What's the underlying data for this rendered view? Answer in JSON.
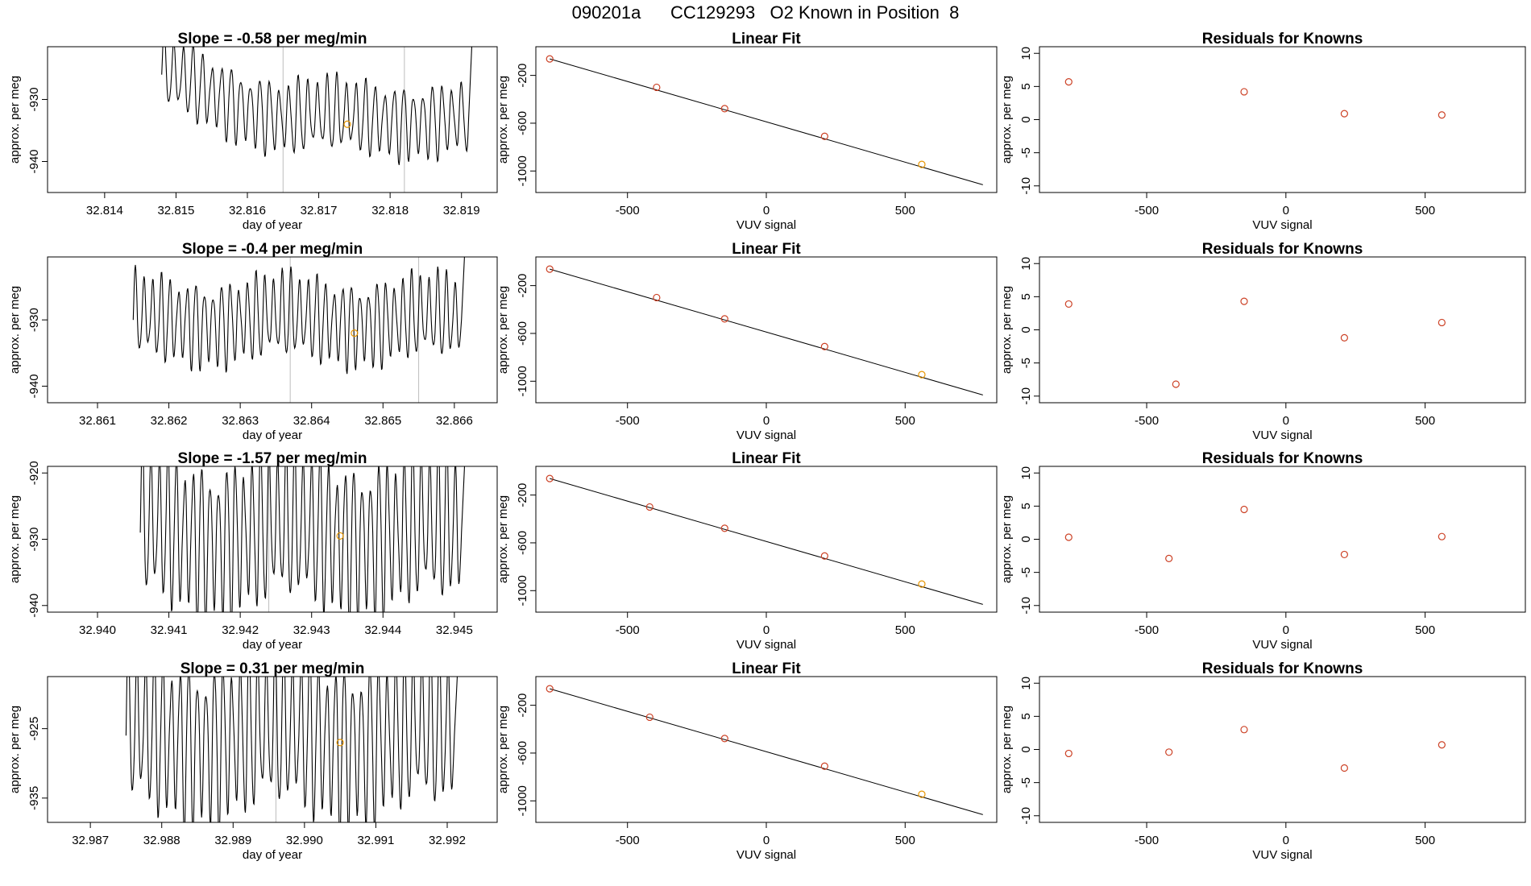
{
  "page_title": "090201a      CC129293   O2 Known in Position  8",
  "colors": {
    "trace": "#000000",
    "fit_line": "#000000",
    "known_point": "#cc4125",
    "highlight_point": "#e69500",
    "marker_line": "#bdbdbd"
  },
  "chart_data": [
    {
      "type": "line",
      "row": 0,
      "title": "Slope =  -0.58  per meg/min",
      "xlabel": "day of year",
      "ylabel": "approx. per meg",
      "xlim": [
        32.8132,
        32.8195
      ],
      "ylim": [
        -945,
        -921.5
      ],
      "xticks": [
        "32.814",
        "32.815",
        "32.816",
        "32.817",
        "32.818",
        "32.819"
      ],
      "yticks": [
        "-930",
        "-940"
      ],
      "trace": {
        "x_start": 32.8148,
        "x_end": 32.8191,
        "baseline": -926,
        "drift": -7,
        "amplitude": 6.5,
        "cycles": 32
      },
      "markers_x": [
        32.8165,
        32.8182
      ],
      "highlight": {
        "x": 32.8174,
        "y": -934
      }
    },
    {
      "type": "scatter",
      "row": 0,
      "title": "Linear Fit",
      "xlabel": "VUV signal",
      "ylabel": "approx. per meg",
      "xlim": [
        -830,
        830
      ],
      "ylim": [
        -1180,
        40
      ],
      "xticks": [
        "-500",
        "0",
        "500"
      ],
      "yticks": [
        "-200",
        "-600",
        "-1000"
      ],
      "points": [
        [
          -780,
          -62
        ],
        [
          -395,
          -300
        ],
        [
          -150,
          -478
        ],
        [
          210,
          -710
        ],
        [
          560,
          -945
        ]
      ],
      "fit": [
        [
          -780,
          -62
        ],
        [
          780,
          -1115
        ]
      ]
    },
    {
      "type": "scatter",
      "row": 0,
      "title": "Residuals for Knowns",
      "xlabel": "VUV signal",
      "ylabel": "approx. per meg",
      "xlim": [
        -885,
        860
      ],
      "ylim": [
        -11,
        11
      ],
      "xticks": [
        "-500",
        "0",
        "500"
      ],
      "yticks": [
        "10",
        "5",
        "0",
        "-5",
        "-10"
      ],
      "points": [
        [
          -780,
          5.7
        ],
        [
          -150,
          4.2
        ],
        [
          210,
          0.9
        ],
        [
          560,
          0.7
        ]
      ]
    },
    {
      "type": "line",
      "row": 1,
      "title": "Slope =  -0.4  per meg/min",
      "xlabel": "day of year",
      "ylabel": "approx. per meg",
      "xlim": [
        32.8603,
        32.8666
      ],
      "ylim": [
        -942.5,
        -920.5
      ],
      "xticks": [
        "32.861",
        "32.862",
        "32.863",
        "32.864",
        "32.865",
        "32.866"
      ],
      "yticks": [
        "-930",
        "-940"
      ],
      "trace": {
        "x_start": 32.8615,
        "x_end": 32.8661,
        "baseline": -930,
        "drift": 0,
        "amplitude": 7,
        "cycles": 38
      },
      "markers_x": [
        32.8637,
        32.8655
      ],
      "highlight": {
        "x": 32.8646,
        "y": -932
      }
    },
    {
      "type": "scatter",
      "row": 1,
      "title": "Linear Fit",
      "xlabel": "VUV signal",
      "ylabel": "approx. per meg",
      "xlim": [
        -830,
        830
      ],
      "ylim": [
        -1180,
        40
      ],
      "xticks": [
        "-500",
        "0",
        "500"
      ],
      "yticks": [
        "-200",
        "-600",
        "-1000"
      ],
      "points": [
        [
          -780,
          -62
        ],
        [
          -395,
          -300
        ],
        [
          -150,
          -478
        ],
        [
          210,
          -710
        ],
        [
          560,
          -945
        ]
      ],
      "fit": [
        [
          -780,
          -62
        ],
        [
          780,
          -1115
        ]
      ]
    },
    {
      "type": "scatter",
      "row": 1,
      "title": "Residuals for Knowns",
      "xlabel": "VUV signal",
      "ylabel": "approx. per meg",
      "xlim": [
        -885,
        860
      ],
      "ylim": [
        -11,
        11
      ],
      "xticks": [
        "-500",
        "0",
        "500"
      ],
      "yticks": [
        "10",
        "5",
        "0",
        "-5",
        "-10"
      ],
      "points": [
        [
          -780,
          3.9
        ],
        [
          -395,
          -8.2
        ],
        [
          -150,
          4.3
        ],
        [
          210,
          -1.2
        ],
        [
          560,
          1.1
        ]
      ]
    },
    {
      "type": "line",
      "row": 2,
      "title": "Slope =  -1.57  per meg/min",
      "xlabel": "day of year",
      "ylabel": "approx. per meg",
      "xlim": [
        32.9393,
        32.9456
      ],
      "ylim": [
        -941,
        -919
      ],
      "xticks": [
        "32.940",
        "32.941",
        "32.942",
        "32.943",
        "32.944",
        "32.945"
      ],
      "yticks": [
        "-920",
        "-930",
        "-940"
      ],
      "trace": {
        "x_start": 32.9406,
        "x_end": 32.9451,
        "baseline": -929,
        "drift": 0,
        "amplitude": 13,
        "cycles": 38
      },
      "markers_x": [
        32.9424
      ],
      "highlight": {
        "x": 32.9434,
        "y": -929.5
      }
    },
    {
      "type": "scatter",
      "row": 2,
      "title": "Linear Fit",
      "xlabel": "VUV signal",
      "ylabel": "approx. per meg",
      "xlim": [
        -830,
        830
      ],
      "ylim": [
        -1180,
        40
      ],
      "xticks": [
        "-500",
        "0",
        "500"
      ],
      "yticks": [
        "-200",
        "-600",
        "-1000"
      ],
      "points": [
        [
          -780,
          -62
        ],
        [
          -420,
          -300
        ],
        [
          -150,
          -478
        ],
        [
          210,
          -710
        ],
        [
          560,
          -945
        ]
      ],
      "fit": [
        [
          -780,
          -62
        ],
        [
          780,
          -1115
        ]
      ]
    },
    {
      "type": "scatter",
      "row": 2,
      "title": "Residuals for Knowns",
      "xlabel": "VUV signal",
      "ylabel": "approx. per meg",
      "xlim": [
        -885,
        860
      ],
      "ylim": [
        -11,
        11
      ],
      "xticks": [
        "-500",
        "0",
        "500"
      ],
      "yticks": [
        "10",
        "5",
        "0",
        "-5",
        "-10"
      ],
      "points": [
        [
          -780,
          0.3
        ],
        [
          -420,
          -2.9
        ],
        [
          -150,
          4.5
        ],
        [
          210,
          -2.3
        ],
        [
          560,
          0.4
        ]
      ]
    },
    {
      "type": "line",
      "row": 3,
      "title": "Slope =  0.31  per meg/min",
      "xlabel": "day of year",
      "ylabel": "approx. per meg",
      "xlim": [
        32.9864,
        32.9927
      ],
      "ylim": [
        -938.5,
        -917.5
      ],
      "xticks": [
        "32.987",
        "32.988",
        "32.989",
        "32.990",
        "32.991",
        "32.992"
      ],
      "yticks": [
        "-925",
        "-935"
      ],
      "trace": {
        "x_start": 32.9875,
        "x_end": 32.9921,
        "baseline": -926,
        "drift": 0,
        "amplitude": 13,
        "cycles": 38
      },
      "markers_x": [
        32.9896
      ],
      "highlight": {
        "x": 32.9905,
        "y": -927
      }
    },
    {
      "type": "scatter",
      "row": 3,
      "title": "Linear Fit",
      "xlabel": "VUV signal",
      "ylabel": "approx. per meg",
      "xlim": [
        -830,
        830
      ],
      "ylim": [
        -1180,
        40
      ],
      "xticks": [
        "-500",
        "0",
        "500"
      ],
      "yticks": [
        "-200",
        "-600",
        "-1000"
      ],
      "points": [
        [
          -780,
          -62
        ],
        [
          -420,
          -300
        ],
        [
          -150,
          -478
        ],
        [
          210,
          -710
        ],
        [
          560,
          -945
        ]
      ],
      "fit": [
        [
          -780,
          -62
        ],
        [
          780,
          -1115
        ]
      ]
    },
    {
      "type": "scatter",
      "row": 3,
      "title": "Residuals for Knowns",
      "xlabel": "VUV signal",
      "ylabel": "approx. per meg",
      "xlim": [
        -885,
        860
      ],
      "ylim": [
        -11,
        11
      ],
      "xticks": [
        "-500",
        "0",
        "500"
      ],
      "yticks": [
        "10",
        "5",
        "0",
        "-5",
        "-10"
      ],
      "points": [
        [
          -780,
          -0.6
        ],
        [
          -420,
          -0.4
        ],
        [
          -150,
          3.0
        ],
        [
          210,
          -2.8
        ],
        [
          560,
          0.7
        ]
      ]
    }
  ]
}
